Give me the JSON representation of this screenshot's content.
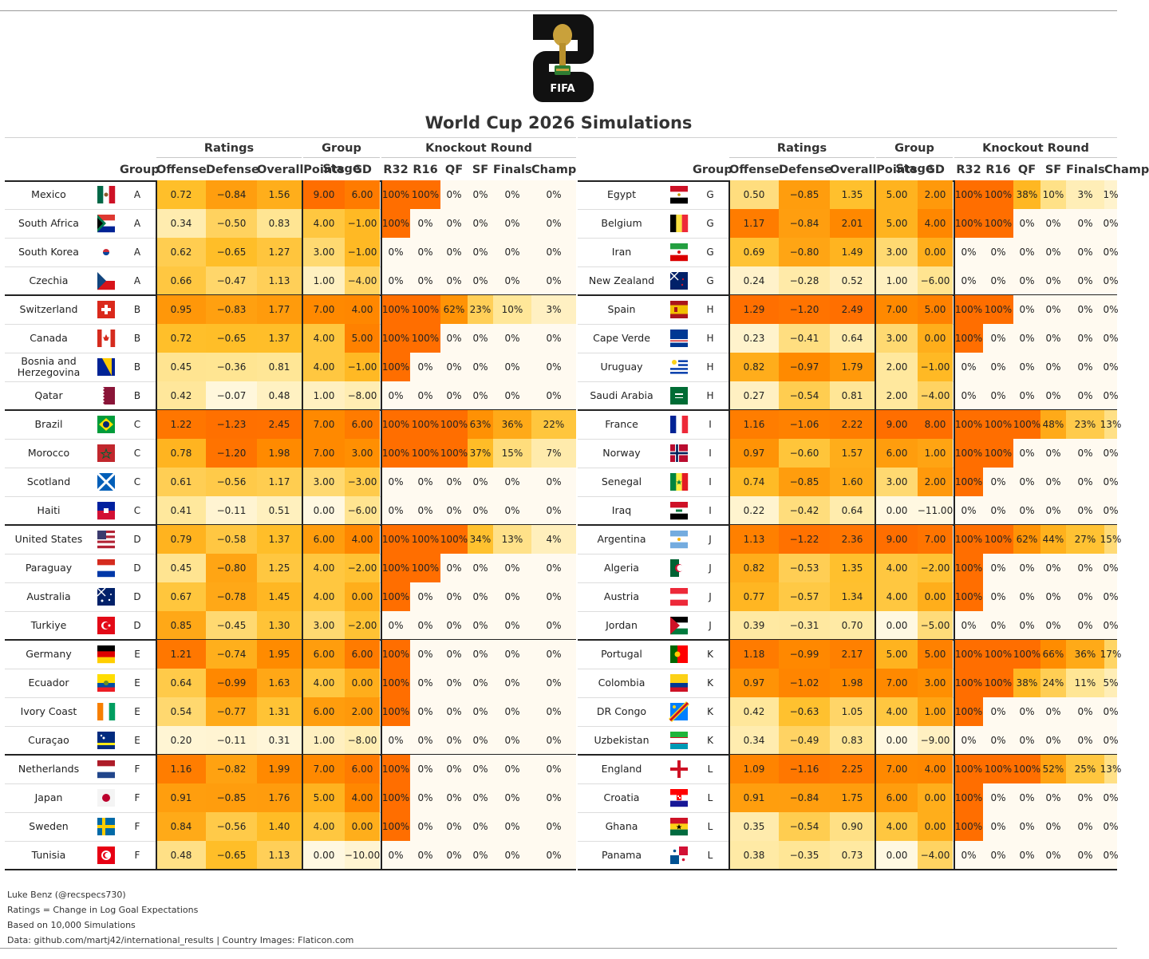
{
  "title": "World Cup 2026 Simulations",
  "logo": {
    "text": "FIFA"
  },
  "header": {
    "spanners": {
      "ratings": "Ratings",
      "group_stage": "Group Stage",
      "knockout": "Knockout Round"
    },
    "columns": [
      "Group",
      "Offense",
      "Defense",
      "Overall",
      "Points",
      "GD",
      "R32",
      "R16",
      "QF",
      "SF",
      "Finals",
      "Champ"
    ]
  },
  "colors": {
    "orange_strong": "#ff7f00",
    "orange_mid": "#ffb000",
    "yellow_light": "#fff7d6",
    "border": "#222222"
  },
  "left_table": [
    {
      "country": "Mexico",
      "flag": "mexico-flag",
      "group": "A",
      "offense": "0.72",
      "defense": "−0.84",
      "overall": "1.56",
      "points": "9.00",
      "gd": "6.00",
      "r32": "100%",
      "r16": "100%",
      "qf": "0%",
      "sf": "0%",
      "finals": "0%",
      "champ": "0%"
    },
    {
      "country": "South Africa",
      "flag": "south-africa-flag",
      "group": "A",
      "offense": "0.34",
      "defense": "−0.50",
      "overall": "0.83",
      "points": "4.00",
      "gd": "−1.00",
      "r32": "100%",
      "r16": "0%",
      "qf": "0%",
      "sf": "0%",
      "finals": "0%",
      "champ": "0%"
    },
    {
      "country": "South Korea",
      "flag": "south-korea-flag",
      "group": "A",
      "offense": "0.62",
      "defense": "−0.65",
      "overall": "1.27",
      "points": "3.00",
      "gd": "−1.00",
      "r32": "0%",
      "r16": "0%",
      "qf": "0%",
      "sf": "0%",
      "finals": "0%",
      "champ": "0%"
    },
    {
      "country": "Czechia",
      "flag": "czechia-flag",
      "group": "A",
      "offense": "0.66",
      "defense": "−0.47",
      "overall": "1.13",
      "points": "1.00",
      "gd": "−4.00",
      "r32": "0%",
      "r16": "0%",
      "qf": "0%",
      "sf": "0%",
      "finals": "0%",
      "champ": "0%"
    },
    {
      "country": "Switzerland",
      "flag": "switzerland-flag",
      "group": "B",
      "offense": "0.95",
      "defense": "−0.83",
      "overall": "1.77",
      "points": "7.00",
      "gd": "4.00",
      "r32": "100%",
      "r16": "100%",
      "qf": "62%",
      "sf": "23%",
      "finals": "10%",
      "champ": "3%"
    },
    {
      "country": "Canada",
      "flag": "canada-flag",
      "group": "B",
      "offense": "0.72",
      "defense": "−0.65",
      "overall": "1.37",
      "points": "4.00",
      "gd": "5.00",
      "r32": "100%",
      "r16": "100%",
      "qf": "0%",
      "sf": "0%",
      "finals": "0%",
      "champ": "0%"
    },
    {
      "country": "Bosnia and Herzegovina",
      "flag": "bosnia-flag",
      "group": "B",
      "offense": "0.45",
      "defense": "−0.36",
      "overall": "0.81",
      "points": "4.00",
      "gd": "−1.00",
      "r32": "100%",
      "r16": "0%",
      "qf": "0%",
      "sf": "0%",
      "finals": "0%",
      "champ": "0%"
    },
    {
      "country": "Qatar",
      "flag": "qatar-flag",
      "group": "B",
      "offense": "0.42",
      "defense": "−0.07",
      "overall": "0.48",
      "points": "1.00",
      "gd": "−8.00",
      "r32": "0%",
      "r16": "0%",
      "qf": "0%",
      "sf": "0%",
      "finals": "0%",
      "champ": "0%"
    },
    {
      "country": "Brazil",
      "flag": "brazil-flag",
      "group": "C",
      "offense": "1.22",
      "defense": "−1.23",
      "overall": "2.45",
      "points": "7.00",
      "gd": "6.00",
      "r32": "100%",
      "r16": "100%",
      "qf": "100%",
      "sf": "63%",
      "finals": "36%",
      "champ": "22%"
    },
    {
      "country": "Morocco",
      "flag": "morocco-flag",
      "group": "C",
      "offense": "0.78",
      "defense": "−1.20",
      "overall": "1.98",
      "points": "7.00",
      "gd": "3.00",
      "r32": "100%",
      "r16": "100%",
      "qf": "100%",
      "sf": "37%",
      "finals": "15%",
      "champ": "7%"
    },
    {
      "country": "Scotland",
      "flag": "scotland-flag",
      "group": "C",
      "offense": "0.61",
      "defense": "−0.56",
      "overall": "1.17",
      "points": "3.00",
      "gd": "−3.00",
      "r32": "0%",
      "r16": "0%",
      "qf": "0%",
      "sf": "0%",
      "finals": "0%",
      "champ": "0%"
    },
    {
      "country": "Haiti",
      "flag": "haiti-flag",
      "group": "C",
      "offense": "0.41",
      "defense": "−0.11",
      "overall": "0.51",
      "points": "0.00",
      "gd": "−6.00",
      "r32": "0%",
      "r16": "0%",
      "qf": "0%",
      "sf": "0%",
      "finals": "0%",
      "champ": "0%"
    },
    {
      "country": "United States",
      "flag": "usa-flag",
      "group": "D",
      "offense": "0.79",
      "defense": "−0.58",
      "overall": "1.37",
      "points": "6.00",
      "gd": "4.00",
      "r32": "100%",
      "r16": "100%",
      "qf": "100%",
      "sf": "34%",
      "finals": "13%",
      "champ": "4%"
    },
    {
      "country": "Paraguay",
      "flag": "paraguay-flag",
      "group": "D",
      "offense": "0.45",
      "defense": "−0.80",
      "overall": "1.25",
      "points": "4.00",
      "gd": "−2.00",
      "r32": "100%",
      "r16": "100%",
      "qf": "0%",
      "sf": "0%",
      "finals": "0%",
      "champ": "0%"
    },
    {
      "country": "Australia",
      "flag": "australia-flag",
      "group": "D",
      "offense": "0.67",
      "defense": "−0.78",
      "overall": "1.45",
      "points": "4.00",
      "gd": "0.00",
      "r32": "100%",
      "r16": "0%",
      "qf": "0%",
      "sf": "0%",
      "finals": "0%",
      "champ": "0%"
    },
    {
      "country": "Turkiye",
      "flag": "turkiye-flag",
      "group": "D",
      "offense": "0.85",
      "defense": "−0.45",
      "overall": "1.30",
      "points": "3.00",
      "gd": "−2.00",
      "r32": "0%",
      "r16": "0%",
      "qf": "0%",
      "sf": "0%",
      "finals": "0%",
      "champ": "0%"
    },
    {
      "country": "Germany",
      "flag": "germany-flag",
      "group": "E",
      "offense": "1.21",
      "defense": "−0.74",
      "overall": "1.95",
      "points": "6.00",
      "gd": "6.00",
      "r32": "100%",
      "r16": "0%",
      "qf": "0%",
      "sf": "0%",
      "finals": "0%",
      "champ": "0%"
    },
    {
      "country": "Ecuador",
      "flag": "ecuador-flag",
      "group": "E",
      "offense": "0.64",
      "defense": "−0.99",
      "overall": "1.63",
      "points": "4.00",
      "gd": "0.00",
      "r32": "100%",
      "r16": "0%",
      "qf": "0%",
      "sf": "0%",
      "finals": "0%",
      "champ": "0%"
    },
    {
      "country": "Ivory Coast",
      "flag": "ivory-coast-flag",
      "group": "E",
      "offense": "0.54",
      "defense": "−0.77",
      "overall": "1.31",
      "points": "6.00",
      "gd": "2.00",
      "r32": "100%",
      "r16": "0%",
      "qf": "0%",
      "sf": "0%",
      "finals": "0%",
      "champ": "0%"
    },
    {
      "country": "Curaçao",
      "flag": "curacao-flag",
      "group": "E",
      "offense": "0.20",
      "defense": "−0.11",
      "overall": "0.31",
      "points": "1.00",
      "gd": "−8.00",
      "r32": "0%",
      "r16": "0%",
      "qf": "0%",
      "sf": "0%",
      "finals": "0%",
      "champ": "0%"
    },
    {
      "country": "Netherlands",
      "flag": "netherlands-flag",
      "group": "F",
      "offense": "1.16",
      "defense": "−0.82",
      "overall": "1.99",
      "points": "7.00",
      "gd": "6.00",
      "r32": "100%",
      "r16": "0%",
      "qf": "0%",
      "sf": "0%",
      "finals": "0%",
      "champ": "0%"
    },
    {
      "country": "Japan",
      "flag": "japan-flag",
      "group": "F",
      "offense": "0.91",
      "defense": "−0.85",
      "overall": "1.76",
      "points": "5.00",
      "gd": "4.00",
      "r32": "100%",
      "r16": "0%",
      "qf": "0%",
      "sf": "0%",
      "finals": "0%",
      "champ": "0%"
    },
    {
      "country": "Sweden",
      "flag": "sweden-flag",
      "group": "F",
      "offense": "0.84",
      "defense": "−0.56",
      "overall": "1.40",
      "points": "4.00",
      "gd": "0.00",
      "r32": "100%",
      "r16": "0%",
      "qf": "0%",
      "sf": "0%",
      "finals": "0%",
      "champ": "0%"
    },
    {
      "country": "Tunisia",
      "flag": "tunisia-flag",
      "group": "F",
      "offense": "0.48",
      "defense": "−0.65",
      "overall": "1.13",
      "points": "0.00",
      "gd": "−10.00",
      "r32": "0%",
      "r16": "0%",
      "qf": "0%",
      "sf": "0%",
      "finals": "0%",
      "champ": "0%"
    }
  ],
  "right_table": [
    {
      "country": "Egypt",
      "flag": "egypt-flag",
      "group": "G",
      "offense": "0.50",
      "defense": "−0.85",
      "overall": "1.35",
      "points": "5.00",
      "gd": "2.00",
      "r32": "100%",
      "r16": "100%",
      "qf": "38%",
      "sf": "10%",
      "finals": "3%",
      "champ": "1%"
    },
    {
      "country": "Belgium",
      "flag": "belgium-flag",
      "group": "G",
      "offense": "1.17",
      "defense": "−0.84",
      "overall": "2.01",
      "points": "5.00",
      "gd": "4.00",
      "r32": "100%",
      "r16": "100%",
      "qf": "0%",
      "sf": "0%",
      "finals": "0%",
      "champ": "0%"
    },
    {
      "country": "Iran",
      "flag": "iran-flag",
      "group": "G",
      "offense": "0.69",
      "defense": "−0.80",
      "overall": "1.49",
      "points": "3.00",
      "gd": "0.00",
      "r32": "0%",
      "r16": "0%",
      "qf": "0%",
      "sf": "0%",
      "finals": "0%",
      "champ": "0%"
    },
    {
      "country": "New Zealand",
      "flag": "new-zealand-flag",
      "group": "G",
      "offense": "0.24",
      "defense": "−0.28",
      "overall": "0.52",
      "points": "1.00",
      "gd": "−6.00",
      "r32": "0%",
      "r16": "0%",
      "qf": "0%",
      "sf": "0%",
      "finals": "0%",
      "champ": "0%"
    },
    {
      "country": "Spain",
      "flag": "spain-flag",
      "group": "H",
      "offense": "1.29",
      "defense": "−1.20",
      "overall": "2.49",
      "points": "7.00",
      "gd": "5.00",
      "r32": "100%",
      "r16": "100%",
      "qf": "0%",
      "sf": "0%",
      "finals": "0%",
      "champ": "0%"
    },
    {
      "country": "Cape Verde",
      "flag": "cape-verde-flag",
      "group": "H",
      "offense": "0.23",
      "defense": "−0.41",
      "overall": "0.64",
      "points": "3.00",
      "gd": "0.00",
      "r32": "100%",
      "r16": "0%",
      "qf": "0%",
      "sf": "0%",
      "finals": "0%",
      "champ": "0%"
    },
    {
      "country": "Uruguay",
      "flag": "uruguay-flag",
      "group": "H",
      "offense": "0.82",
      "defense": "−0.97",
      "overall": "1.79",
      "points": "2.00",
      "gd": "−1.00",
      "r32": "0%",
      "r16": "0%",
      "qf": "0%",
      "sf": "0%",
      "finals": "0%",
      "champ": "0%"
    },
    {
      "country": "Saudi Arabia",
      "flag": "saudi-arabia-flag",
      "group": "H",
      "offense": "0.27",
      "defense": "−0.54",
      "overall": "0.81",
      "points": "2.00",
      "gd": "−4.00",
      "r32": "0%",
      "r16": "0%",
      "qf": "0%",
      "sf": "0%",
      "finals": "0%",
      "champ": "0%"
    },
    {
      "country": "France",
      "flag": "france-flag",
      "group": "I",
      "offense": "1.16",
      "defense": "−1.06",
      "overall": "2.22",
      "points": "9.00",
      "gd": "8.00",
      "r32": "100%",
      "r16": "100%",
      "qf": "100%",
      "sf": "48%",
      "finals": "23%",
      "champ": "13%"
    },
    {
      "country": "Norway",
      "flag": "norway-flag",
      "group": "I",
      "offense": "0.97",
      "defense": "−0.60",
      "overall": "1.57",
      "points": "6.00",
      "gd": "1.00",
      "r32": "100%",
      "r16": "100%",
      "qf": "0%",
      "sf": "0%",
      "finals": "0%",
      "champ": "0%"
    },
    {
      "country": "Senegal",
      "flag": "senegal-flag",
      "group": "I",
      "offense": "0.74",
      "defense": "−0.85",
      "overall": "1.60",
      "points": "3.00",
      "gd": "2.00",
      "r32": "100%",
      "r16": "0%",
      "qf": "0%",
      "sf": "0%",
      "finals": "0%",
      "champ": "0%"
    },
    {
      "country": "Iraq",
      "flag": "iraq-flag",
      "group": "I",
      "offense": "0.22",
      "defense": "−0.42",
      "overall": "0.64",
      "points": "0.00",
      "gd": "−11.00",
      "r32": "0%",
      "r16": "0%",
      "qf": "0%",
      "sf": "0%",
      "finals": "0%",
      "champ": "0%"
    },
    {
      "country": "Argentina",
      "flag": "argentina-flag",
      "group": "J",
      "offense": "1.13",
      "defense": "−1.22",
      "overall": "2.36",
      "points": "9.00",
      "gd": "7.00",
      "r32": "100%",
      "r16": "100%",
      "qf": "62%",
      "sf": "44%",
      "finals": "27%",
      "champ": "15%"
    },
    {
      "country": "Algeria",
      "flag": "algeria-flag",
      "group": "J",
      "offense": "0.82",
      "defense": "−0.53",
      "overall": "1.35",
      "points": "4.00",
      "gd": "−2.00",
      "r32": "100%",
      "r16": "0%",
      "qf": "0%",
      "sf": "0%",
      "finals": "0%",
      "champ": "0%"
    },
    {
      "country": "Austria",
      "flag": "austria-flag",
      "group": "J",
      "offense": "0.77",
      "defense": "−0.57",
      "overall": "1.34",
      "points": "4.00",
      "gd": "0.00",
      "r32": "100%",
      "r16": "0%",
      "qf": "0%",
      "sf": "0%",
      "finals": "0%",
      "champ": "0%"
    },
    {
      "country": "Jordan",
      "flag": "jordan-flag",
      "group": "J",
      "offense": "0.39",
      "defense": "−0.31",
      "overall": "0.70",
      "points": "0.00",
      "gd": "−5.00",
      "r32": "0%",
      "r16": "0%",
      "qf": "0%",
      "sf": "0%",
      "finals": "0%",
      "champ": "0%"
    },
    {
      "country": "Portugal",
      "flag": "portugal-flag",
      "group": "K",
      "offense": "1.18",
      "defense": "−0.99",
      "overall": "2.17",
      "points": "5.00",
      "gd": "5.00",
      "r32": "100%",
      "r16": "100%",
      "qf": "100%",
      "sf": "66%",
      "finals": "36%",
      "champ": "17%"
    },
    {
      "country": "Colombia",
      "flag": "colombia-flag",
      "group": "K",
      "offense": "0.97",
      "defense": "−1.02",
      "overall": "1.98",
      "points": "7.00",
      "gd": "3.00",
      "r32": "100%",
      "r16": "100%",
      "qf": "38%",
      "sf": "24%",
      "finals": "11%",
      "champ": "5%"
    },
    {
      "country": "DR Congo",
      "flag": "dr-congo-flag",
      "group": "K",
      "offense": "0.42",
      "defense": "−0.63",
      "overall": "1.05",
      "points": "4.00",
      "gd": "1.00",
      "r32": "100%",
      "r16": "0%",
      "qf": "0%",
      "sf": "0%",
      "finals": "0%",
      "champ": "0%"
    },
    {
      "country": "Uzbekistan",
      "flag": "uzbekistan-flag",
      "group": "K",
      "offense": "0.34",
      "defense": "−0.49",
      "overall": "0.83",
      "points": "0.00",
      "gd": "−9.00",
      "r32": "0%",
      "r16": "0%",
      "qf": "0%",
      "sf": "0%",
      "finals": "0%",
      "champ": "0%"
    },
    {
      "country": "England",
      "flag": "england-flag",
      "group": "L",
      "offense": "1.09",
      "defense": "−1.16",
      "overall": "2.25",
      "points": "7.00",
      "gd": "4.00",
      "r32": "100%",
      "r16": "100%",
      "qf": "100%",
      "sf": "52%",
      "finals": "25%",
      "champ": "13%"
    },
    {
      "country": "Croatia",
      "flag": "croatia-flag",
      "group": "L",
      "offense": "0.91",
      "defense": "−0.84",
      "overall": "1.75",
      "points": "6.00",
      "gd": "0.00",
      "r32": "100%",
      "r16": "0%",
      "qf": "0%",
      "sf": "0%",
      "finals": "0%",
      "champ": "0%"
    },
    {
      "country": "Ghana",
      "flag": "ghana-flag",
      "group": "L",
      "offense": "0.35",
      "defense": "−0.54",
      "overall": "0.90",
      "points": "4.00",
      "gd": "0.00",
      "r32": "100%",
      "r16": "0%",
      "qf": "0%",
      "sf": "0%",
      "finals": "0%",
      "champ": "0%"
    },
    {
      "country": "Panama",
      "flag": "panama-flag",
      "group": "L",
      "offense": "0.38",
      "defense": "−0.35",
      "overall": "0.73",
      "points": "0.00",
      "gd": "−4.00",
      "r32": "0%",
      "r16": "0%",
      "qf": "0%",
      "sf": "0%",
      "finals": "0%",
      "champ": "0%"
    }
  ],
  "footer": [
    "Luke Benz (@recspecs730)",
    "Ratings = Change in Log Goal Expectations",
    "Based on 10,000 Simulations",
    "Data: github.com/martj42/international_results | Country Images: Flaticon.com"
  ]
}
